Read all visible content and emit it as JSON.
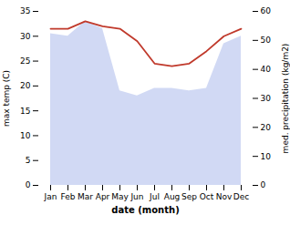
{
  "chart_data": {
    "type": "line",
    "categories": [
      "Jan",
      "Feb",
      "Mar",
      "Apr",
      "May",
      "Jun",
      "Jul",
      "Aug",
      "Sep",
      "Oct",
      "Nov",
      "Dec"
    ],
    "series": [
      {
        "type": "area",
        "color": "#b8c4ee",
        "values": [
          30.5,
          30.0,
          33.0,
          31.5,
          19.0,
          18.0,
          19.5,
          19.5,
          19.0,
          19.5,
          28.5,
          30.0
        ]
      },
      {
        "type": "line",
        "color": "#c0392b",
        "values": [
          31.5,
          31.5,
          33.0,
          32.0,
          31.5,
          29.0,
          24.5,
          24.0,
          24.5,
          27.0,
          30.0,
          31.5
        ]
      }
    ],
    "xlabel": "date (month)",
    "ylabel": "max temp (C)",
    "y2label": "med. precipitation (kg/m2)",
    "ylim": [
      0,
      35
    ],
    "yticks": [
      0,
      5,
      10,
      15,
      20,
      25,
      30,
      35
    ],
    "y2lim": [
      0,
      60
    ],
    "y2ticks": [
      0,
      10,
      20,
      30,
      40,
      50,
      60
    ],
    "grid": false
  }
}
